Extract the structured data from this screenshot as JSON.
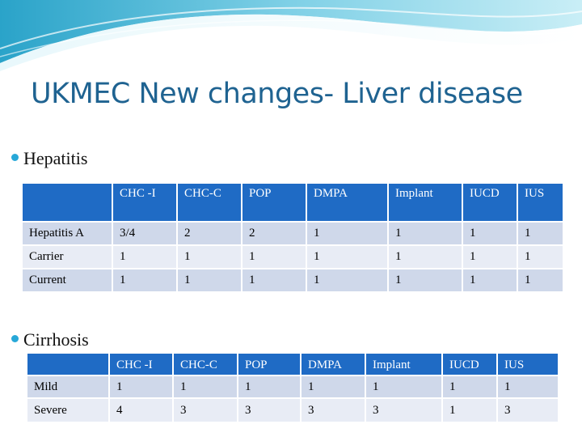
{
  "slide": {
    "title": "UKMEC New changes- Liver disease"
  },
  "sections": [
    {
      "bullet": "Hepatitis",
      "table": {
        "headers": [
          "",
          "CHC -I",
          "CHC-C",
          "POP",
          "DMPA",
          "Implant",
          "IUCD",
          "IUS"
        ],
        "rows": [
          [
            "Hepatitis A",
            "3/4",
            "2",
            "2",
            "1",
            "1",
            "1",
            "1"
          ],
          [
            "Carrier",
            "1",
            "1",
            "1",
            "1",
            "1",
            "1",
            "1"
          ],
          [
            "Current",
            "1",
            "1",
            "1",
            "1",
            "1",
            "1",
            "1"
          ]
        ]
      }
    },
    {
      "bullet": "Cirrhosis",
      "table": {
        "headers": [
          "",
          "CHC -I",
          "CHC-C",
          "POP",
          "DMPA",
          "Implant",
          "IUCD",
          "IUS"
        ],
        "rows": [
          [
            "Mild",
            "1",
            "1",
            "1",
            "1",
            "1",
            "1",
            "1"
          ],
          [
            "Severe",
            "4",
            "3",
            "3",
            "3",
            "3",
            "1",
            "3"
          ]
        ]
      }
    }
  ],
  "colors": {
    "title": "#1f6391",
    "header_fill": "#1f6bc5",
    "row_dark": "#cfd8ea",
    "row_light": "#e8ecf5",
    "bullet": "#27a8d8"
  }
}
